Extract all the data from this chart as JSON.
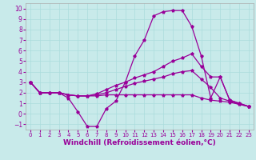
{
  "bg_color": "#c8eaea",
  "line_color": "#990099",
  "xlabel": "Windchill (Refroidissement éolien,°C)",
  "xlabel_color": "#990099",
  "xlabel_fontsize": 6.5,
  "tick_color": "#990099",
  "ylim": [
    -1.5,
    10.5
  ],
  "xlim": [
    -0.5,
    23.5
  ],
  "yticks": [
    -1,
    0,
    1,
    2,
    3,
    4,
    5,
    6,
    7,
    8,
    9,
    10
  ],
  "xticks": [
    0,
    1,
    2,
    3,
    4,
    5,
    6,
    7,
    8,
    9,
    10,
    11,
    12,
    13,
    14,
    15,
    16,
    17,
    18,
    19,
    20,
    21,
    22,
    23
  ],
  "grid_color": "#aadddd",
  "curve_a_x": [
    0,
    1,
    2,
    3,
    4,
    5,
    6,
    7,
    8,
    9,
    10,
    11,
    12,
    13,
    14,
    15,
    16,
    17,
    18,
    19,
    20,
    21,
    22,
    23
  ],
  "curve_a_y": [
    3.0,
    2.0,
    2.0,
    2.0,
    1.5,
    0.2,
    -1.2,
    -1.2,
    0.5,
    1.2,
    3.0,
    5.5,
    7.0,
    9.3,
    9.7,
    9.8,
    9.8,
    8.3,
    5.5,
    1.5,
    3.5,
    1.3,
    1.0,
    0.7
  ],
  "curve_b_x": [
    0,
    1,
    2,
    3,
    4,
    5,
    6,
    7,
    8,
    9,
    10,
    11,
    12,
    13,
    14,
    15,
    16,
    17,
    18,
    19,
    20,
    21,
    22,
    23
  ],
  "curve_b_y": [
    3.0,
    2.0,
    2.0,
    2.0,
    1.8,
    1.7,
    1.7,
    1.9,
    2.3,
    2.7,
    3.0,
    3.4,
    3.7,
    4.0,
    4.5,
    5.0,
    5.3,
    5.7,
    4.5,
    3.5,
    3.5,
    1.3,
    1.0,
    0.7
  ],
  "curve_c_x": [
    0,
    1,
    2,
    3,
    4,
    5,
    6,
    7,
    8,
    9,
    10,
    11,
    12,
    13,
    14,
    15,
    16,
    17,
    18,
    19,
    20,
    21,
    22,
    23
  ],
  "curve_c_y": [
    3.0,
    2.0,
    2.0,
    2.0,
    1.8,
    1.7,
    1.7,
    1.8,
    2.0,
    2.3,
    2.6,
    2.9,
    3.1,
    3.3,
    3.5,
    3.8,
    4.0,
    4.1,
    3.3,
    2.5,
    1.5,
    1.2,
    0.9,
    0.7
  ],
  "curve_d_x": [
    0,
    1,
    2,
    3,
    4,
    5,
    6,
    7,
    8,
    9,
    10,
    11,
    12,
    13,
    14,
    15,
    16,
    17,
    18,
    19,
    20,
    21,
    22,
    23
  ],
  "curve_d_y": [
    3.0,
    2.0,
    2.0,
    2.0,
    1.8,
    1.7,
    1.7,
    1.7,
    1.8,
    1.8,
    1.8,
    1.8,
    1.8,
    1.8,
    1.8,
    1.8,
    1.8,
    1.8,
    1.5,
    1.3,
    1.2,
    1.1,
    0.9,
    0.7
  ]
}
